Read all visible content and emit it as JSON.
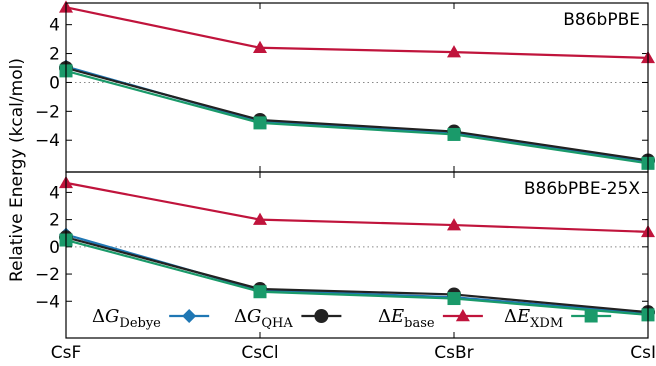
{
  "chart_data": {
    "type": "line",
    "categories": [
      "CsF",
      "CsCl",
      "CsBr",
      "CsI"
    ],
    "ylabel": "Relative Energy (kcal/mol)",
    "legend_placement": "bottom",
    "series_styles": [
      {
        "key": "debye",
        "color": "#1f77b4",
        "marker": "diamond",
        "legend_main": "ΔG",
        "legend_sub": "Debye"
      },
      {
        "key": "qha",
        "color": "#222222",
        "marker": "circle",
        "legend_main": "ΔG",
        "legend_sub": "QHA"
      },
      {
        "key": "base",
        "color": "#c0143c",
        "marker": "triangle",
        "legend_main": "ΔE",
        "legend_sub": "base"
      },
      {
        "key": "xdm",
        "color": "#1a9a6a",
        "marker": "square",
        "legend_main": "ΔE",
        "legend_sub": "XDM"
      }
    ],
    "panels": [
      {
        "label": "B86bPBE",
        "ylim": [
          -6.2,
          5.5
        ],
        "yticks": [
          "4",
          "2",
          "0",
          "−2",
          "−4"
        ],
        "ytick_values": [
          4,
          2,
          0,
          -2,
          -4
        ],
        "zero_line": "dotted",
        "series": [
          {
            "key": "debye",
            "values": [
              1.1,
              -2.7,
              -3.5,
              -5.5
            ]
          },
          {
            "key": "qha",
            "values": [
              1.0,
              -2.6,
              -3.4,
              -5.4
            ]
          },
          {
            "key": "base",
            "values": [
              5.2,
              2.4,
              2.1,
              1.7
            ]
          },
          {
            "key": "xdm",
            "values": [
              0.8,
              -2.8,
              -3.6,
              -5.6
            ]
          }
        ]
      },
      {
        "label": "B86bPBE-25X",
        "ylim": [
          -6.7,
          5.5
        ],
        "yticks": [
          "4",
          "2",
          "0",
          "−2",
          "−4"
        ],
        "ytick_values": [
          4,
          2,
          0,
          -2,
          -4
        ],
        "zero_line": "dotted",
        "series": [
          {
            "key": "debye",
            "values": [
              0.9,
              -3.2,
              -3.7,
              -4.9
            ]
          },
          {
            "key": "qha",
            "values": [
              0.7,
              -3.1,
              -3.5,
              -4.8
            ]
          },
          {
            "key": "base",
            "values": [
              4.7,
              2.0,
              1.6,
              1.1
            ]
          },
          {
            "key": "xdm",
            "values": [
              0.5,
              -3.3,
              -3.8,
              -5.0
            ]
          }
        ]
      }
    ]
  }
}
